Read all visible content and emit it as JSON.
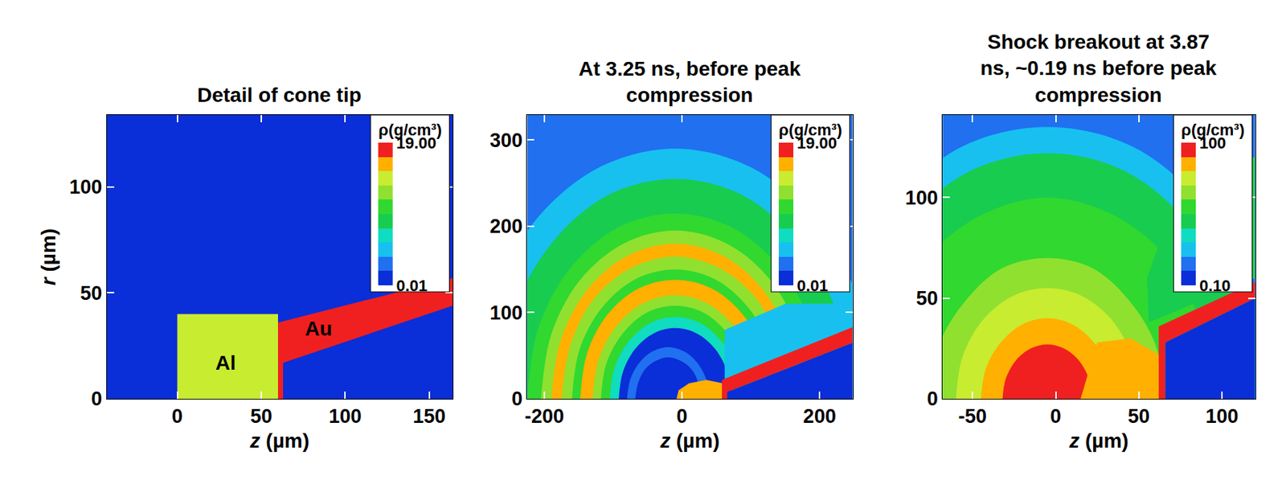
{
  "chart_data": [
    {
      "type": "contour",
      "title": "Detail of cone tip",
      "x_label": "z (µm)",
      "y_label": "r (µm)",
      "xlim": [
        -42,
        164
      ],
      "xticks": [
        0,
        50,
        100,
        150
      ],
      "ylim": [
        0,
        134
      ],
      "yticks": [
        0,
        50,
        100
      ],
      "colorbar": {
        "title": "ρ(g/cm³)",
        "log": true,
        "range": [
          0.01,
          19
        ],
        "ticks": [
          0.01,
          {
            "value": 19,
            "label": "19.00"
          }
        ]
      },
      "background_density": 0.01,
      "regions": [
        {
          "label": "Al",
          "label_position": [
            29,
            17
          ],
          "density": 2.7,
          "z": [
            0,
            60,
            60,
            0
          ],
          "r": [
            0,
            0,
            40,
            40
          ]
        },
        {
          "label": "Au",
          "label_position": [
            84,
            33
          ],
          "density": 19.3,
          "z": [
            60,
            63,
            63,
            164,
            164,
            60
          ],
          "r": [
            0,
            0,
            17,
            44,
            57,
            36
          ]
        }
      ]
    },
    {
      "type": "contour",
      "title": "At 3.25 ns, before peak compression",
      "x_label": "z (µm)",
      "xlim": [
        -225,
        248
      ],
      "xticks": [
        -200,
        0,
        200
      ],
      "ylim": [
        0,
        329
      ],
      "yticks": [
        0,
        100,
        200,
        300
      ],
      "colorbar": {
        "title": "ρ(g/cm³)",
        "log": true,
        "range": [
          0.01,
          19
        ],
        "ticks": [
          0.01,
          {
            "value": 19,
            "label": "19.00"
          }
        ]
      },
      "background_density": 0.03,
      "regions": [
        {
          "density": 0.07,
          "z": [
            -300,
            -278,
            -215,
            -121,
            -10,
            101,
            195,
            258,
            280
          ],
          "r": [
            0,
            111,
            205,
            268,
            290,
            268,
            205,
            111,
            0
          ]
        },
        {
          "density": 0.3,
          "z": [
            -265,
            -246,
            -190,
            -108,
            -10,
            88,
            170,
            226,
            245
          ],
          "r": [
            0,
            98,
            180,
            236,
            255,
            236,
            180,
            98,
            0
          ]
        },
        {
          "density": 0.7,
          "z": [
            -225,
            -209,
            -162,
            -92,
            -10,
            72,
            142,
            189,
            205
          ],
          "r": [
            0,
            82,
            152,
            199,
            215,
            199,
            152,
            82,
            0
          ]
        },
        {
          "density": 1.5,
          "z": [
            -205,
            -190,
            -148,
            -85,
            -10,
            65,
            128,
            170,
            185
          ],
          "r": [
            0,
            75,
            138,
            180,
            195,
            180,
            138,
            75,
            0
          ]
        },
        {
          "density": 6,
          "z": [
            -190,
            -176,
            -137,
            -79,
            -10,
            59,
            117,
            156,
            170
          ],
          "r": [
            0,
            69,
            127,
            166,
            180,
            166,
            127,
            69,
            0
          ]
        },
        {
          "density": 1.5,
          "z": [
            -175,
            -162,
            -127,
            -73,
            -10,
            53,
            107,
            142,
            155
          ],
          "r": [
            0,
            63,
            117,
            152,
            165,
            152,
            117,
            63,
            0
          ]
        },
        {
          "density": 0.7,
          "z": [
            -160,
            -149,
            -116,
            -67,
            -10,
            47,
            96,
            129,
            140
          ],
          "r": [
            0,
            57,
            106,
            139,
            150,
            139,
            106,
            57,
            0
          ]
        },
        {
          "density": 6,
          "z": [
            -148,
            -138,
            -108,
            -63,
            -10,
            43,
            88,
            118,
            128
          ],
          "r": [
            0,
            53,
            98,
            128,
            138,
            128,
            98,
            53,
            0
          ]
        },
        {
          "density": 1.5,
          "z": [
            -130,
            -121,
            -95,
            -56,
            -10,
            36,
            75,
            101,
            110
          ],
          "r": [
            0,
            46,
            85,
            111,
            120,
            111,
            85,
            46,
            0
          ]
        },
        {
          "density": 0.5,
          "z": [
            -118,
            -110,
            -86,
            -51,
            -10,
            31,
            66,
            90,
            98
          ],
          "r": [
            0,
            41,
            76,
            100,
            108,
            100,
            76,
            41,
            0
          ]
        },
        {
          "density": 0.15,
          "z": [
            -105,
            -98,
            -77,
            -46,
            -10,
            26,
            57,
            78,
            85
          ],
          "r": [
            0,
            36,
            67,
            88,
            95,
            88,
            67,
            36,
            0
          ]
        },
        {
          "density": 0.012,
          "z": [
            -92,
            -86,
            -68,
            -41,
            -10,
            21,
            48,
            66,
            72
          ],
          "r": [
            0,
            31,
            58,
            76,
            82,
            76,
            58,
            31,
            0
          ]
        },
        {
          "density": 0.03,
          "z": [
            -80,
            -75,
            -62,
            -43,
            -20,
            3,
            22,
            35,
            40
          ],
          "r": [
            0,
            23,
            42,
            55,
            60,
            55,
            42,
            23,
            0
          ]
        },
        {
          "density": 0.012,
          "z": [
            -68,
            -64,
            -54,
            -38,
            -20,
            -2,
            14,
            24,
            28
          ],
          "r": [
            0,
            18,
            34,
            44,
            48,
            44,
            34,
            18,
            0
          ]
        },
        {
          "density": 0.08,
          "z": [
            62,
            248,
            248,
            150,
            62
          ],
          "r": [
            22,
            83,
            110,
            110,
            80
          ]
        },
        {
          "density": 6,
          "z": [
            -8,
            60,
            60,
            35,
            10,
            -5
          ],
          "r": [
            0,
            0,
            18,
            22,
            18,
            10
          ]
        },
        {
          "density": 19,
          "z": [
            58,
            66,
            66,
            248,
            248,
            58
          ],
          "r": [
            0,
            0,
            8,
            65,
            83,
            22
          ]
        },
        {
          "density": 0.01,
          "z": [
            66,
            248,
            248,
            66
          ],
          "r": [
            0,
            0,
            65,
            8
          ]
        }
      ]
    },
    {
      "type": "contour",
      "title": "Shock breakout at 3.87 ns, ~0.19 ns before peak compression",
      "x_label": "z (µm)",
      "xlim": [
        -68,
        120
      ],
      "xticks": [
        -50,
        0,
        50,
        100
      ],
      "ylim": [
        0,
        141
      ],
      "yticks": [
        0,
        50,
        100
      ],
      "colorbar": {
        "title": "ρ(g/cm³)",
        "log": true,
        "range": [
          0.1,
          100
        ],
        "ticks": [
          {
            "value": 0.1,
            "label": "0.10"
          },
          100
        ]
      },
      "background_density": 0.3,
      "regions": [
        {
          "density": 0.6,
          "z": [
            -140,
            -130,
            -100,
            -57,
            -5,
            47,
            90,
            120,
            130
          ],
          "r": [
            0,
            52,
            95,
            125,
            135,
            125,
            95,
            52,
            0
          ]
        },
        {
          "density": 2.5,
          "z": [
            -127,
            -118,
            -91,
            -52,
            -5,
            42,
            81,
            108,
            117
          ],
          "r": [
            0,
            47,
            86,
            113,
            122,
            113,
            86,
            47,
            0
          ]
        },
        {
          "density": 5,
          "z": [
            -105,
            -97,
            -76,
            -43,
            -5,
            33,
            66,
            87,
            95
          ],
          "r": [
            0,
            38,
            71,
            92,
            100,
            92,
            71,
            38,
            0
          ]
        },
        {
          "density": 9,
          "z": [
            -75,
            -70,
            -54,
            -32,
            -5,
            22,
            44,
            60,
            65
          ],
          "r": [
            0,
            27,
            49,
            65,
            70,
            65,
            49,
            27,
            0
          ]
        },
        {
          "density": 18,
          "z": [
            -60,
            -56,
            -44,
            -26,
            -5,
            16,
            34,
            46,
            50
          ],
          "r": [
            0,
            21,
            39,
            51,
            55,
            51,
            39,
            21,
            0
          ]
        },
        {
          "density": 35,
          "z": [
            -45,
            -42,
            -33,
            -20,
            -5,
            10,
            23,
            32,
            35
          ],
          "r": [
            0,
            15,
            28,
            37,
            40,
            37,
            28,
            15,
            0
          ]
        },
        {
          "density": 70,
          "z": [
            -32,
            -30,
            -24,
            -15,
            -5,
            5,
            14,
            20,
            22
          ],
          "r": [
            0,
            10,
            19,
            25,
            27,
            25,
            19,
            10,
            0
          ]
        },
        {
          "density": 30,
          "z": [
            15,
            62,
            62,
            45,
            25
          ],
          "r": [
            0,
            0,
            22,
            30,
            28
          ]
        },
        {
          "density": 3,
          "z": [
            56,
            120,
            120,
            95,
            70,
            55
          ],
          "r": [
            38,
            60,
            120,
            118,
            95,
            60
          ]
        },
        {
          "density": 60,
          "z": [
            62,
            66,
            66,
            120,
            120,
            62
          ],
          "r": [
            0,
            0,
            28,
            50,
            58,
            36
          ]
        },
        {
          "density": 0.12,
          "z": [
            66,
            120,
            120,
            66
          ],
          "r": [
            0,
            0,
            50,
            28
          ]
        }
      ]
    }
  ]
}
